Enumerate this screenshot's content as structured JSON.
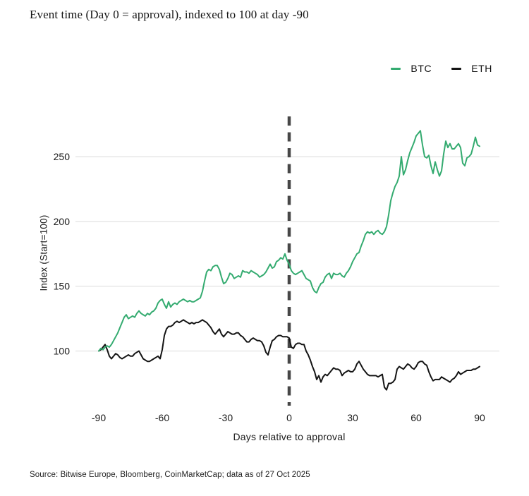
{
  "source": {
    "text": "Source: Bitwise Europe, Bloomberg, CoinMarketCap; data as of 27 Oct 2025"
  },
  "colors": {
    "btc_line": "#34ab70",
    "eth_line": "#141414",
    "gridline": "#dcdcdc",
    "event_line": "#474747",
    "text": "#1a1a1a"
  },
  "chart_data": {
    "type": "line",
    "title": "Event time (Day 0 = approval), indexed to 100 at day -90",
    "xlabel": "Days relative to approval",
    "ylabel": "Index (Start=100)",
    "xlim": [
      -90,
      90
    ],
    "ylim": [
      60,
      290
    ],
    "xticks": [
      -90,
      -60,
      -30,
      0,
      30,
      60,
      90
    ],
    "yticks": [
      100,
      150,
      200,
      250
    ],
    "grid": "horizontal-only",
    "legend_position": "top-right",
    "event_line_x": 0,
    "x_start": -90,
    "x_step": 1,
    "series": [
      {
        "name": "BTC",
        "color": "#34ab70",
        "values": [
          100,
          102,
          101,
          103,
          104,
          103,
          105,
          108,
          111,
          114,
          118,
          122,
          126,
          128,
          125,
          126,
          127,
          126,
          129,
          131,
          129,
          128,
          127,
          129,
          128,
          130,
          131,
          133,
          137,
          139,
          140,
          136,
          133,
          138,
          134,
          136,
          137,
          136,
          138,
          139,
          140,
          139,
          138,
          139,
          138,
          138,
          139,
          140,
          141,
          146,
          154,
          161,
          163,
          162,
          165,
          166,
          166,
          163,
          157,
          152,
          153,
          156,
          160,
          159,
          156,
          157,
          158,
          157,
          162,
          161,
          161,
          160,
          162,
          161,
          160,
          159,
          157,
          158,
          159,
          161,
          164,
          167,
          164,
          165,
          169,
          170,
          172,
          171,
          175,
          170,
          167,
          162,
          160,
          159,
          160,
          161,
          162,
          159,
          156,
          155,
          154,
          149,
          146,
          145,
          149,
          152,
          153,
          157,
          159,
          160,
          156,
          160,
          159,
          159,
          160,
          158,
          157,
          160,
          162,
          165,
          169,
          172,
          175,
          176,
          181,
          185,
          190,
          192,
          191,
          192,
          190,
          192,
          193,
          191,
          190,
          192,
          196,
          205,
          216,
          222,
          227,
          230,
          235,
          250,
          236,
          240,
          247,
          253,
          257,
          261,
          266,
          268,
          270,
          259,
          250,
          249,
          251,
          243,
          237,
          246,
          240,
          235,
          239,
          252,
          262,
          257,
          260,
          256,
          256,
          258,
          260,
          257,
          245,
          243,
          249,
          250,
          252,
          258,
          265,
          259,
          258
        ]
      },
      {
        "name": "ETH",
        "color": "#141414",
        "values": [
          100,
          101,
          103,
          105,
          101,
          96,
          94,
          96,
          98,
          97,
          95,
          94,
          95,
          96,
          97,
          96,
          96,
          98,
          99,
          100,
          97,
          94,
          93,
          92,
          92,
          93,
          94,
          95,
          96,
          94,
          101,
          112,
          117,
          119,
          119,
          120,
          122,
          123,
          122,
          123,
          124,
          123,
          122,
          121,
          122,
          121,
          122,
          122,
          123,
          124,
          123,
          122,
          120,
          118,
          115,
          113,
          115,
          117,
          113,
          111,
          113,
          115,
          114,
          113,
          113,
          114,
          114,
          112,
          111,
          109,
          107,
          107,
          109,
          110,
          109,
          108,
          108,
          107,
          104,
          99,
          97,
          103,
          108,
          109,
          111,
          112,
          112,
          111,
          111,
          111,
          110,
          103,
          102,
          105,
          106,
          106,
          105,
          105,
          100,
          97,
          93,
          88,
          84,
          78,
          81,
          76,
          80,
          82,
          81,
          83,
          85,
          87,
          86,
          86,
          85,
          81,
          83,
          84,
          85,
          84,
          84,
          86,
          90,
          92,
          89,
          86,
          84,
          82,
          81,
          81,
          81,
          81,
          80,
          81,
          82,
          72,
          70,
          75,
          75,
          76,
          78,
          86,
          88,
          87,
          86,
          88,
          90,
          89,
          87,
          86,
          88,
          91,
          92,
          92,
          90,
          89,
          84,
          80,
          77,
          78,
          78,
          78,
          80,
          79,
          78,
          77,
          76,
          78,
          79,
          81,
          84,
          82,
          83,
          84,
          85,
          85,
          85,
          86,
          86,
          87,
          88
        ]
      }
    ]
  }
}
